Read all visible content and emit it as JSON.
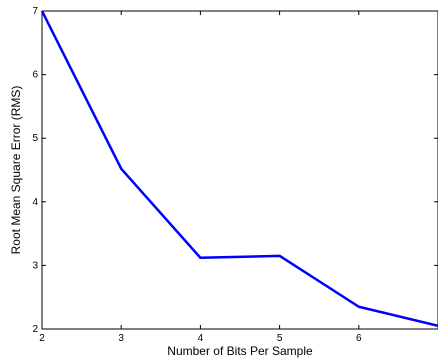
{
  "chart_data": {
    "type": "line",
    "title": "",
    "xlabel": "Number of Bits Per Sample",
    "ylabel": "Root Mean Square Error (RMS)",
    "xlim": [
      2,
      7
    ],
    "ylim": [
      2,
      7
    ],
    "xticks": [
      "2",
      "3",
      "4",
      "5",
      "6"
    ],
    "yticks": [
      "2",
      "3",
      "4",
      "5",
      "6",
      "7"
    ],
    "grid": false,
    "legend": "none",
    "series": [
      {
        "color": "#0000ff",
        "x": [
          2,
          3,
          4,
          5,
          6,
          7
        ],
        "y": [
          7.0,
          4.52,
          3.12,
          3.15,
          2.35,
          2.05
        ]
      }
    ]
  }
}
